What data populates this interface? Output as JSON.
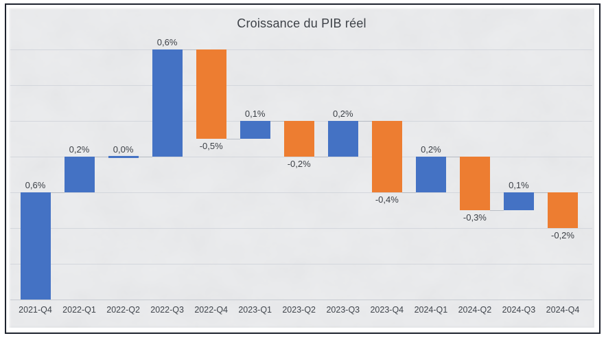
{
  "chart_data": {
    "type": "bar",
    "subtype": "waterfall",
    "title": "Croissance du PIB réel",
    "categories": [
      "2021-Q4",
      "2022-Q1",
      "2022-Q2",
      "2022-Q3",
      "2022-Q4",
      "2023-Q1",
      "2023-Q2",
      "2023-Q3",
      "2023-Q4",
      "2024-Q1",
      "2024-Q2",
      "2024-Q3",
      "2024-Q4"
    ],
    "values": [
      0.6,
      0.2,
      0.0,
      0.6,
      -0.5,
      0.1,
      -0.2,
      0.2,
      -0.4,
      0.2,
      -0.3,
      0.1,
      -0.2
    ],
    "labels": [
      "0,6%",
      "0,2%",
      "0,0%",
      "0,6%",
      "-0,5%",
      "0,1%",
      "-0,2%",
      "0,2%",
      "-0,4%",
      "0,2%",
      "-0,3%",
      "0,1%",
      "-0,2%"
    ],
    "cumulative": [
      0.6,
      0.8,
      0.8,
      1.4,
      0.9,
      1.0,
      0.8,
      1.0,
      0.6,
      0.8,
      0.5,
      0.6,
      0.4
    ],
    "unit": "%",
    "xlabel": "",
    "ylabel": "",
    "ylim": [
      0,
      1.4
    ],
    "ytick_step": 0.2,
    "grid": true,
    "legend": false,
    "y_axis_labels_visible": false,
    "connector_lines": true
  },
  "colors": {
    "increase": "#4472C4",
    "decrease": "#ED7D31",
    "zero_bar": "#4472C4",
    "panel_bg": "#ECEDEF",
    "frame_border": "#1E232E",
    "gridline": "#D3D6DC",
    "axis_line": "#C7CBD2",
    "connector": "#ABB0BA",
    "title_text": "#3D4147",
    "data_label_text": "#3B3F45",
    "axis_label_text": "#3F444B",
    "page_bg": "#FFFFFF"
  }
}
